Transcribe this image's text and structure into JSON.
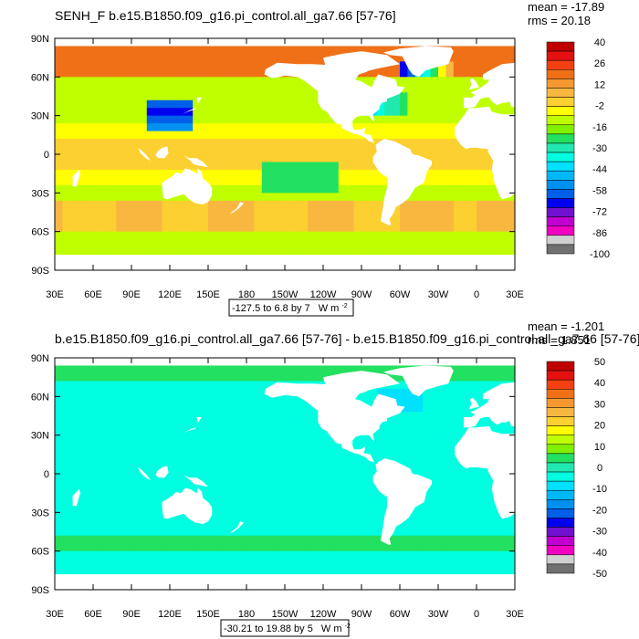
{
  "chart_data": [
    {
      "type": "heatmap",
      "title": "SENH_F b.e15.B1850.f09_g16.pi_control.all_ga7.66 [57-76]",
      "stats": {
        "mean": "mean = -17.89",
        "rms": "rms = 20.18"
      },
      "range_label": "-127.5 to 6.8 by 7",
      "units_label": "W m",
      "units_exp": "-2",
      "xlabels": [
        "30E",
        "60E",
        "90E",
        "120E",
        "150E",
        "180",
        "150W",
        "120W",
        "90W",
        "60W",
        "30W",
        "0",
        "30E"
      ],
      "ylabels": [
        "90N",
        "60N",
        "30N",
        "0",
        "30S",
        "60S",
        "90S"
      ],
      "colorbar_labels": [
        "40",
        "26",
        "12",
        "-2",
        "-16",
        "-30",
        "-44",
        "-58",
        "-72",
        "-86",
        "-100"
      ],
      "colors": [
        "#c00000",
        "#e51010",
        "#f34010",
        "#f07018",
        "#f59830",
        "#f8b840",
        "#fbd030",
        "#ffff00",
        "#bfff00",
        "#80f000",
        "#22e060",
        "#20e8b0",
        "#00ffe0",
        "#00e0ff",
        "#00b8f8",
        "#0090f0",
        "#0060e8",
        "#0000f0",
        "#7010d0",
        "#c000d0",
        "#f000c0",
        "#d0d0d0",
        "#707070"
      ],
      "field": "senh",
      "mean_value": -17.89,
      "rms_value": 20.18,
      "data_min": -127.5,
      "data_max": 6.8,
      "interval": 7
    },
    {
      "type": "heatmap",
      "title": "b.e15.B1850.f09_g16.pi_control.all_ga7.66 [57-76] - b.e15.B1850.f09_g16.pi_control.all_ga7.66 [57-76]",
      "stats": {
        "mean": "mean = -1.201",
        "rms": "rms = 1.851"
      },
      "range_label": "-30.21 to 19.88 by 5",
      "units_label": "W m",
      "units_exp": "-2",
      "xlabels": [
        "30E",
        "60E",
        "90E",
        "120E",
        "150E",
        "180",
        "150W",
        "120W",
        "90W",
        "60W",
        "30W",
        "0",
        "30E"
      ],
      "ylabels": [
        "90N",
        "60N",
        "30N",
        "0",
        "30S",
        "60S",
        "90S"
      ],
      "colorbar_labels": [
        "50",
        "40",
        "30",
        "20",
        "10",
        "0",
        "-10",
        "-20",
        "-30",
        "-40",
        "-50"
      ],
      "colors": [
        "#c00000",
        "#e51010",
        "#f34010",
        "#f07018",
        "#f59830",
        "#f8b840",
        "#fbd030",
        "#ffff00",
        "#bfff00",
        "#80f000",
        "#22e060",
        "#20e8b0",
        "#00ffe0",
        "#00e0ff",
        "#00b8f8",
        "#0090f0",
        "#0060e8",
        "#0000f0",
        "#7010d0",
        "#c000d0",
        "#f000c0",
        "#d0d0d0",
        "#707070"
      ],
      "field": "diff",
      "mean_value": -1.201,
      "rms_value": 1.851,
      "data_min": -30.21,
      "data_max": 19.88,
      "interval": 5
    }
  ]
}
